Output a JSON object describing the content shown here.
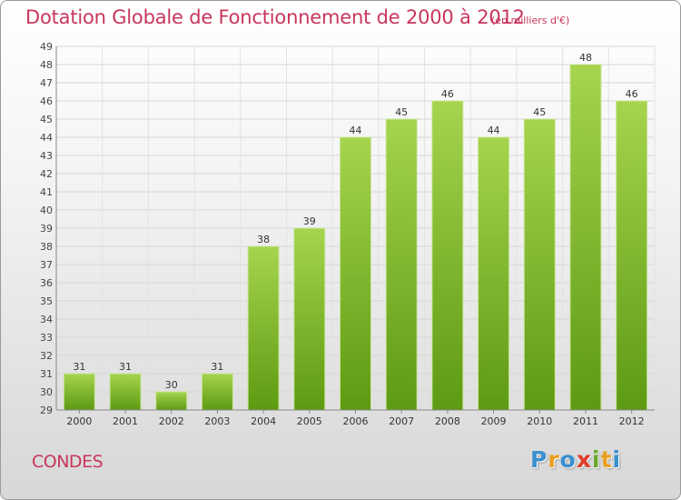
{
  "header": {
    "title": "Dotation Globale de Fonctionnement de 2000 à 2012",
    "unit": "(en milliers d'€)"
  },
  "footer": {
    "town": "CONDES",
    "logo_letters": [
      "P",
      "r",
      "o",
      "x",
      "i",
      "t",
      "i"
    ]
  },
  "colors": {
    "title": "#c8365c",
    "bar_light": "#a6d44e",
    "bar_dark": "#5d9a12",
    "logo": [
      "#3a8fd0",
      "#e8a020",
      "#3a8fd0",
      "#e03a2a",
      "#6aa82a",
      "#e8a020",
      "#3a8fd0"
    ]
  },
  "chart_data": {
    "type": "bar",
    "categories": [
      "2000",
      "2001",
      "2002",
      "2003",
      "2004",
      "2005",
      "2006",
      "2007",
      "2008",
      "2009",
      "2010",
      "2011",
      "2012"
    ],
    "values": [
      31,
      31,
      30,
      31,
      38,
      39,
      44,
      45,
      46,
      44,
      45,
      48,
      46
    ],
    "ylim": [
      29,
      49
    ],
    "yticks": [
      29,
      30,
      31,
      32,
      33,
      34,
      35,
      36,
      37,
      38,
      39,
      40,
      41,
      42,
      43,
      44,
      45,
      46,
      47,
      48,
      49
    ],
    "grid": true,
    "data_labels": true
  }
}
